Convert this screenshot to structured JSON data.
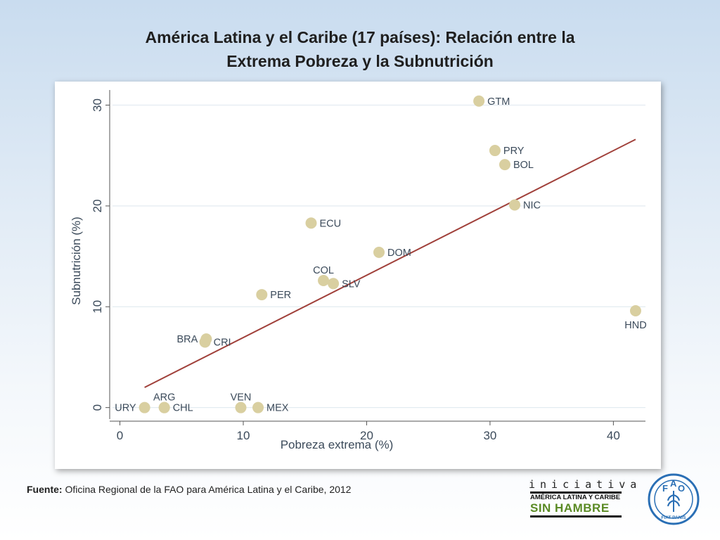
{
  "slide": {
    "title_line1": "América Latina y el Caribe (17 países): Relación entre la",
    "title_line2": "Extrema Pobreza y la Subnutrición",
    "source_label": "Fuente:",
    "source_text": " Oficina Regional de la FAO para América Latina y el Caribe, 2012"
  },
  "logos": {
    "iniciativa_word": "iniciativa",
    "iniciativa_sub": "AMÉRICA LATINA Y CARIBE",
    "iniciativa_main": "SIN HAMBRE",
    "fao_letters": "FAO",
    "fao_motto": "FIAT PANIS"
  },
  "chart_data": {
    "type": "scatter",
    "title": "",
    "xlabel": "Pobreza extrema (%)",
    "ylabel": "Subnutrición (%)",
    "xlim": [
      -0.6,
      42.6
    ],
    "ylim": [
      -1,
      31.5
    ],
    "xticks": [
      0,
      10,
      20,
      30,
      40
    ],
    "yticks": [
      0,
      10,
      20,
      30
    ],
    "grid": true,
    "point_color": "#d9cfa0",
    "line_color": "#a0403a",
    "points": [
      {
        "label": "GTM",
        "x": 29.1,
        "y": 30.4,
        "label_pos": "right"
      },
      {
        "label": "PRY",
        "x": 30.4,
        "y": 25.5,
        "label_pos": "right"
      },
      {
        "label": "BOL",
        "x": 31.2,
        "y": 24.1,
        "label_pos": "right"
      },
      {
        "label": "NIC",
        "x": 32.0,
        "y": 20.1,
        "label_pos": "right"
      },
      {
        "label": "ECU",
        "x": 15.5,
        "y": 18.3,
        "label_pos": "right"
      },
      {
        "label": "DOM",
        "x": 21.0,
        "y": 15.4,
        "label_pos": "right"
      },
      {
        "label": "COL",
        "x": 16.5,
        "y": 12.6,
        "label_pos": "top"
      },
      {
        "label": "SLV",
        "x": 17.3,
        "y": 12.3,
        "label_pos": "right"
      },
      {
        "label": "PER",
        "x": 11.5,
        "y": 11.2,
        "label_pos": "right"
      },
      {
        "label": "HND",
        "x": 41.8,
        "y": 9.6,
        "label_pos": "bottom"
      },
      {
        "label": "BRA",
        "x": 7.0,
        "y": 6.8,
        "label_pos": "left"
      },
      {
        "label": "CRI",
        "x": 6.9,
        "y": 6.5,
        "label_pos": "right"
      },
      {
        "label": "URY",
        "x": 2.0,
        "y": 0.0,
        "label_pos": "left"
      },
      {
        "label": "ARG",
        "x": 3.6,
        "y": 0.0,
        "label_pos": "top"
      },
      {
        "label": "CHL",
        "x": 3.6,
        "y": 0.0,
        "label_pos": "right"
      },
      {
        "label": "VEN",
        "x": 9.8,
        "y": 0.0,
        "label_pos": "top"
      },
      {
        "label": "MEX",
        "x": 11.2,
        "y": 0.0,
        "label_pos": "right"
      }
    ],
    "fit_line": {
      "x": [
        2.0,
        41.8
      ],
      "y": [
        2.0,
        26.6
      ]
    }
  }
}
